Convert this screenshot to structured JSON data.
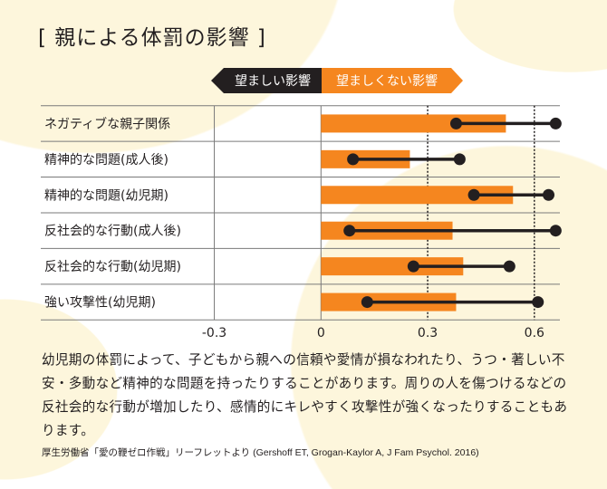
{
  "title": "[ 親による体罰の影響 ]",
  "chart_data": {
    "type": "bar",
    "orientation": "horizontal",
    "legend": [
      {
        "label": "望ましい影響",
        "color": "#231f20",
        "direction": "left"
      },
      {
        "label": "望ましくない影響",
        "color": "#f5861f",
        "direction": "right"
      }
    ],
    "categories": [
      "ネガティブな親子関係",
      "精神的な問題(成人後)",
      "精神的な問題(幼児期)",
      "反社会的な行動(成人後)",
      "反社会的な行動(幼児期)",
      "強い攻撃性(幼児期)"
    ],
    "values": [
      0.52,
      0.25,
      0.54,
      0.37,
      0.4,
      0.38
    ],
    "intervals": [
      [
        0.38,
        0.66
      ],
      [
        0.09,
        0.39
      ],
      [
        0.43,
        0.64
      ],
      [
        0.08,
        0.66
      ],
      [
        0.26,
        0.53
      ],
      [
        0.13,
        0.61
      ]
    ],
    "xticks": [
      "-0.3",
      "0",
      "0.3",
      "0.6"
    ],
    "xtick_values": [
      -0.3,
      0,
      0.3,
      0.6
    ],
    "xlim": [
      -0.3,
      0.67
    ],
    "bar_color": "#f5861f",
    "interval_color": "#231f20"
  },
  "description": "幼児期の体罰によって、子どもから親への信頼や愛情が損なわれたり、うつ・著しい不安・多動など精神的な問題を持ったりすることがあります。周りの人を傷つけるなどの反社会的な行動が増加したり、感情的にキレやすく攻撃性が強くなったりすることもあります。",
  "source": "厚生労働省「愛の鞭ゼロ作戦」リーフレットより (Gershoff ET, Grogan-Kaylor A, J Fam Psychol. 2016)"
}
